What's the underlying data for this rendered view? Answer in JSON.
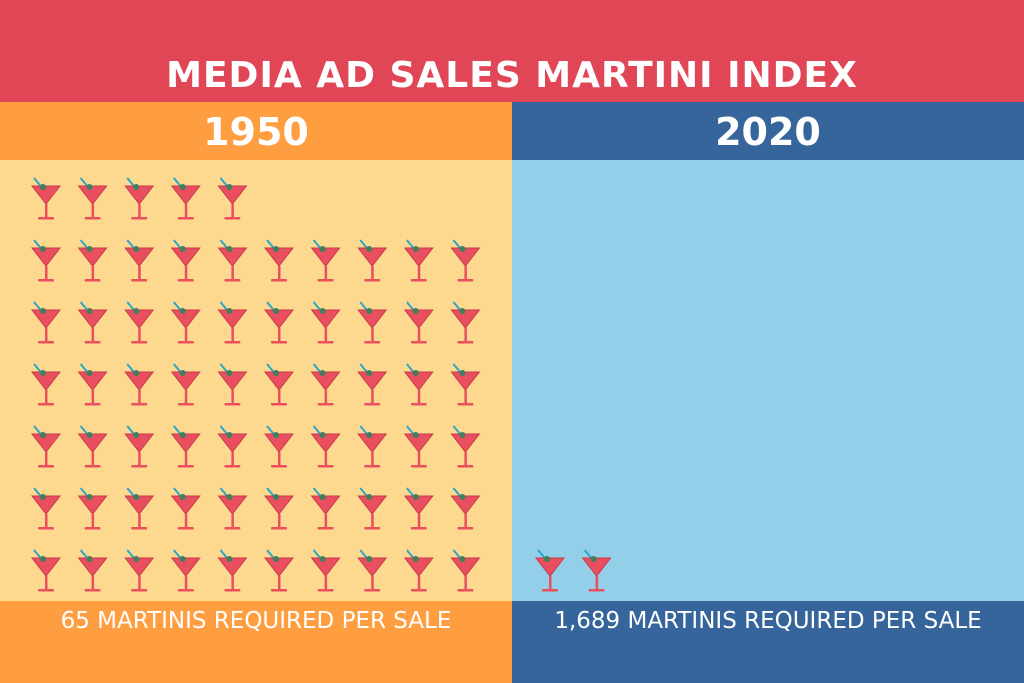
{
  "title": "MEDIA AD SALES MARTINI INDEX",
  "colors": {
    "title_bar": "#e04656",
    "panel_1950_head": "#ff9e40",
    "panel_1950_body": "#fdd98f",
    "panel_2020_head": "#35659a",
    "panel_2020_body": "#94cfe9",
    "glass_fill": "#e94f5f",
    "glass_stroke": "#c93a4a",
    "olive": "#3f7f5d",
    "pick": "#2aa7c9"
  },
  "chart_data": {
    "type": "pictograph",
    "icon": "martini-glass-icon",
    "title": "MEDIA AD SALES MARTINI INDEX",
    "panels": [
      {
        "year": "1950",
        "label": "65 MARTINIS REQUIRED PER SALE",
        "value": 65,
        "icons_shown": 65,
        "rows": [
          5,
          10,
          10,
          10,
          10,
          10,
          10
        ]
      },
      {
        "year": "2020",
        "label": "1,689 MARTINIS REQUIRED PER SALE",
        "value": 1689,
        "icons_shown": 2,
        "rows": [
          2
        ]
      }
    ]
  }
}
